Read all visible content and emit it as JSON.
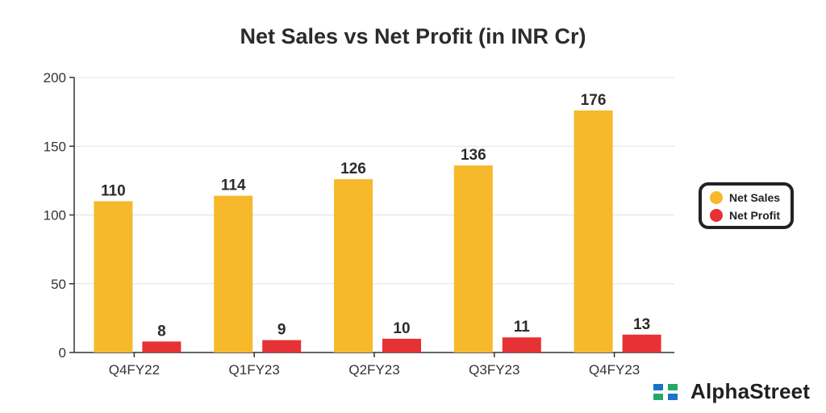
{
  "chart_data": {
    "type": "bar",
    "title": "Net Sales vs Net Profit (in INR Cr)",
    "categories": [
      "Q4FY22",
      "Q1FY23",
      "Q2FY23",
      "Q3FY23",
      "Q4FY23"
    ],
    "series": [
      {
        "name": "Net Sales",
        "values": [
          110,
          114,
          126,
          136,
          176
        ],
        "color": "#F6B92B"
      },
      {
        "name": "Net Profit",
        "values": [
          8,
          9,
          10,
          11,
          13
        ],
        "color": "#E63234"
      }
    ],
    "ylim": [
      0,
      200
    ],
    "yticks": [
      0,
      50,
      100,
      150,
      200
    ],
    "grid": true,
    "legend": "right"
  },
  "brand": {
    "name": "AlphaStreet",
    "icon": "alphastreet-logo-icon"
  }
}
